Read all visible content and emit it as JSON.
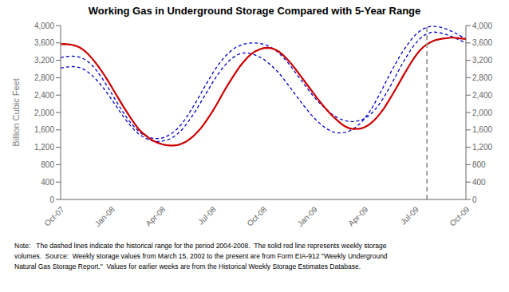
{
  "chart_data": {
    "type": "line",
    "title": "Working Gas in Underground Storage Compared with 5-Year Range",
    "y_label": "Billion Cubic Feet",
    "categories": [
      "Oct-07",
      null,
      null,
      null,
      null,
      null,
      null,
      null,
      null,
      null,
      null,
      null,
      null,
      "Jan-08",
      null,
      null,
      null,
      null,
      null,
      null,
      null,
      null,
      null,
      null,
      null,
      null,
      "Apr-08",
      null,
      null,
      null,
      null,
      null,
      null,
      null,
      null,
      null,
      null,
      null,
      null,
      "Jul-08",
      null,
      null,
      null,
      null,
      null,
      null,
      null,
      null,
      null,
      null,
      null,
      null,
      "Oct-08",
      null,
      null,
      null,
      null,
      null,
      null,
      null,
      null,
      null,
      null,
      null,
      null,
      "Jan-09",
      null,
      null,
      null,
      null,
      null,
      null,
      null,
      null,
      null,
      null,
      null,
      null,
      "Apr-09",
      null,
      null,
      null,
      null,
      null,
      null,
      null,
      null,
      null,
      null,
      null,
      null,
      "Jul-09",
      null,
      null,
      null,
      null,
      null,
      null,
      null,
      null,
      null,
      null,
      null,
      null,
      "Oct-09"
    ],
    "series": [
      {
        "color": "#0000cc",
        "line_style": "dashed",
        "values": [
          3260,
          3280,
          3290,
          3295,
          3290,
          3270,
          3230,
          3170,
          3090,
          2990,
          2870,
          2740,
          2600,
          2450,
          2300,
          2150,
          2010,
          1880,
          1760,
          1660,
          1570,
          1500,
          1450,
          1420,
          1400,
          1400,
          1410,
          1440,
          1490,
          1550,
          1630,
          1730,
          1850,
          1990,
          2130,
          2280,
          2440,
          2600,
          2750,
          2900,
          3040,
          3160,
          3270,
          3360,
          3440,
          3500,
          3540,
          3570,
          3590,
          3600,
          3600,
          3590,
          3570,
          3540,
          3500,
          3440,
          3370,
          3280,
          3180,
          3070,
          2950,
          2830,
          2710,
          2590,
          2470,
          2360,
          2260,
          2170,
          2080,
          2000,
          1940,
          1880,
          1840,
          1810,
          1790,
          1790,
          1800,
          1820,
          1860,
          1920,
          2000,
          2100,
          2220,
          2360,
          2510,
          2670,
          2840,
          3010,
          3170,
          3320,
          3460,
          3580,
          3680,
          3760,
          3810,
          3840,
          3850,
          3840,
          3820,
          3790,
          3760,
          3720,
          3680,
          3640,
          3600
        ]
      },
      {
        "color": "#0000cc",
        "line_style": "dashed",
        "values": [
          3020,
          3040,
          3050,
          3055,
          3050,
          3030,
          2990,
          2930,
          2860,
          2770,
          2670,
          2560,
          2440,
          2310,
          2180,
          2050,
          1920,
          1800,
          1690,
          1590,
          1510,
          1450,
          1400,
          1360,
          1340,
          1330,
          1340,
          1360,
          1390,
          1440,
          1510,
          1590,
          1700,
          1820,
          1950,
          2090,
          2240,
          2390,
          2540,
          2690,
          2830,
          2960,
          3070,
          3170,
          3250,
          3310,
          3350,
          3370,
          3370,
          3350,
          3320,
          3280,
          3230,
          3160,
          3090,
          3000,
          2910,
          2800,
          2680,
          2560,
          2440,
          2320,
          2200,
          2090,
          1980,
          1880,
          1790,
          1710,
          1640,
          1590,
          1550,
          1530,
          1530,
          1540,
          1570,
          1620,
          1680,
          1760,
          1860,
          1980,
          2120,
          2280,
          2450,
          2620,
          2800,
          2970,
          3130,
          3290,
          3430,
          3560,
          3680,
          3780,
          3860,
          3920,
          3960,
          3980,
          3980,
          3970,
          3950,
          3920,
          3880,
          3840,
          3790,
          3740,
          3690
        ]
      },
      {
        "color": "#cc0000",
        "line_style": "solid",
        "values": [
          3570,
          3575,
          3565,
          3555,
          3530,
          3490,
          3430,
          3350,
          3250,
          3140,
          3020,
          2890,
          2750,
          2600,
          2450,
          2300,
          2150,
          2010,
          1870,
          1740,
          1620,
          1530,
          1460,
          1390,
          1340,
          1300,
          1270,
          1250,
          1240,
          1240,
          1250,
          1280,
          1320,
          1380,
          1450,
          1540,
          1640,
          1760,
          1890,
          2030,
          2180,
          2340,
          2500,
          2650,
          2790,
          2930,
          3060,
          3170,
          3270,
          3350,
          3410,
          3450,
          3480,
          3490,
          3480,
          3450,
          3400,
          3330,
          3240,
          3140,
          3030,
          2910,
          2790,
          2670,
          2550,
          2430,
          2310,
          2200,
          2090,
          1990,
          1900,
          1820,
          1740,
          1680,
          1640,
          1620,
          1620,
          1630,
          1660,
          1710,
          1780,
          1870,
          1980,
          2100,
          2240,
          2390,
          2540,
          2700,
          2860,
          3010,
          3160,
          3290,
          3410,
          3500,
          3570,
          3620,
          3660,
          3680,
          3700,
          3710,
          3720,
          3720,
          3710,
          3700,
          3690
        ]
      }
    ],
    "vlines": [
      {
        "x": 94,
        "color": "#999999",
        "line_style": "dashed"
      }
    ],
    "ylim": [
      0,
      4000
    ],
    "yticks": [
      0,
      400,
      800,
      {
        "value": 1200,
        "label": "1,200"
      },
      {
        "value": 1600,
        "label": "1,600"
      },
      {
        "value": 2000,
        "label": "2,000"
      },
      {
        "value": 2400,
        "label": "2,400"
      },
      {
        "value": 2800,
        "label": "2,800"
      },
      {
        "value": 3200,
        "label": "3,200"
      },
      {
        "value": 3600,
        "label": "3,600"
      },
      {
        "value": 4000,
        "label": "4,000"
      }
    ],
    "y2lim": [
      0,
      4000
    ],
    "y2ticks": [
      0,
      400,
      800,
      {
        "value": 1200,
        "label": "1,200"
      },
      {
        "value": 1600,
        "label": "1,600"
      },
      {
        "value": 2000,
        "label": "2,000"
      },
      {
        "value": 2400,
        "label": "2,400"
      },
      {
        "value": 2800,
        "label": "2,800"
      },
      {
        "value": 3200,
        "label": "3,200"
      },
      {
        "value": 3600,
        "label": "3,600"
      },
      {
        "value": 4000,
        "label": "4,000"
      }
    ],
    "grid": false,
    "annotations": [
      "Note:   The dashed lines indicate the historical range for the period 2004-2008.  The solid red line represents weekly storage",
      "volumes.  Source:  Weekly storage values from March 15, 2002 to the present are from Form EIA-912 \"Weekly Underground",
      "Natural Gas Storage Report.\"  Values for earlier weeks are from the Historical Weekly Storage Estimates Database."
    ]
  }
}
